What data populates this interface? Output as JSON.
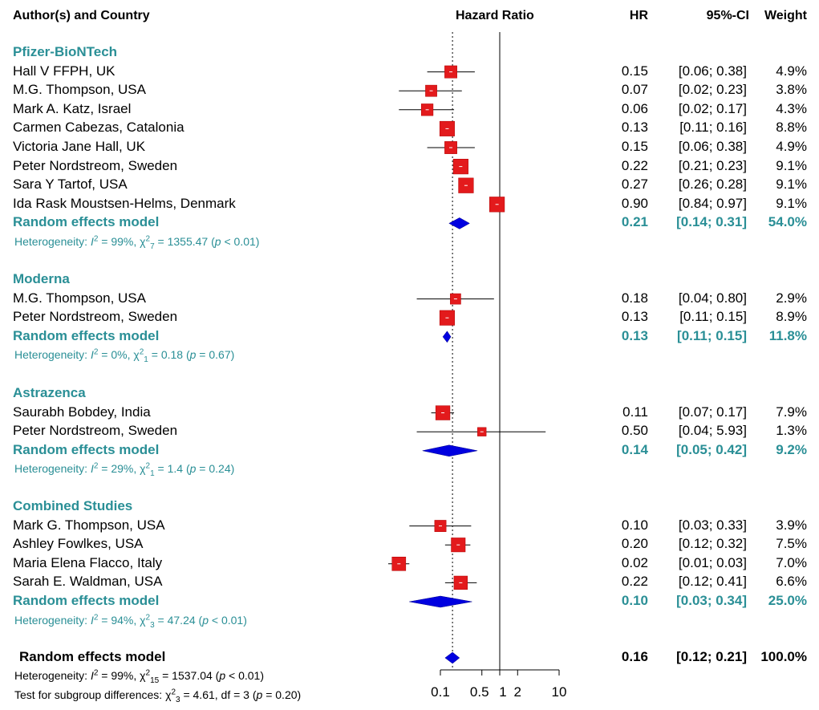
{
  "headers": {
    "author": "Author(s) and Country",
    "hazard_ratio": "Hazard Ratio",
    "hr": "HR",
    "ci": "95%-CI",
    "weight": "Weight"
  },
  "colors": {
    "square": "#e31a1c",
    "diamond": "#0000e0",
    "teal": "#2a8f96"
  },
  "chart_data": {
    "type": "forest",
    "title": "Hazard Ratio",
    "x_scale": "log",
    "xlim": [
      0.02,
      10
    ],
    "reference_lines": [
      {
        "value": 1,
        "style": "solid"
      },
      {
        "value": 0.16,
        "style": "dotted"
      }
    ],
    "tick_labels": [
      "0.1",
      "0.5",
      "1",
      "2",
      "10"
    ],
    "tick_values": [
      0.1,
      0.5,
      1,
      2,
      10
    ],
    "groups": [
      {
        "name": "Pfizer-BioNTech",
        "studies": [
          {
            "label": "Hall V FFPH,  UK",
            "hr": 0.15,
            "lo": 0.06,
            "hi": 0.38,
            "hr_text": "0.15",
            "ci_text": "[0.06;  0.38]",
            "weight_text": "4.9%",
            "weight": 4.9
          },
          {
            "label": "M.G. Thompson,  USA",
            "hr": 0.07,
            "lo": 0.02,
            "hi": 0.23,
            "hr_text": "0.07",
            "ci_text": "[0.02;  0.23]",
            "weight_text": "3.8%",
            "weight": 3.8
          },
          {
            "label": "Mark A. Katz,  Israel",
            "hr": 0.06,
            "lo": 0.02,
            "hi": 0.17,
            "hr_text": "0.06",
            "ci_text": "[0.02;  0.17]",
            "weight_text": "4.3%",
            "weight": 4.3
          },
          {
            "label": "Carmen Cabezas,  Catalonia",
            "hr": 0.13,
            "lo": 0.11,
            "hi": 0.16,
            "hr_text": "0.13",
            "ci_text": "[0.11;  0.16]",
            "weight_text": "8.8%",
            "weight": 8.8
          },
          {
            "label": "Victoria Jane Hall,  UK",
            "hr": 0.15,
            "lo": 0.06,
            "hi": 0.38,
            "hr_text": "0.15",
            "ci_text": "[0.06;  0.38]",
            "weight_text": "4.9%",
            "weight": 4.9
          },
          {
            "label": "Peter Nordstreom,  Sweden",
            "hr": 0.22,
            "lo": 0.21,
            "hi": 0.23,
            "hr_text": "0.22",
            "ci_text": "[0.21;  0.23]",
            "weight_text": "9.1%",
            "weight": 9.1
          },
          {
            "label": "Sara Y Tartof,  USA",
            "hr": 0.27,
            "lo": 0.26,
            "hi": 0.28,
            "hr_text": "0.27",
            "ci_text": "[0.26;  0.28]",
            "weight_text": "9.1%",
            "weight": 9.1
          },
          {
            "label": "Ida Rask Moustsen-Helms,  Denmark",
            "hr": 0.9,
            "lo": 0.84,
            "hi": 0.97,
            "hr_text": "0.90",
            "ci_text": "[0.84;  0.97]",
            "weight_text": "9.1%",
            "weight": 9.1
          }
        ],
        "model": {
          "label": "Random effects model",
          "hr": 0.21,
          "lo": 0.14,
          "hi": 0.31,
          "hr_text": "0.21",
          "ci_text": "[0.14;  0.31]",
          "weight_text": "54.0%"
        },
        "heterogeneity": {
          "prefix": "Heterogeneity: ",
          "i2_value": " = 99%, ",
          "chi_df": "7",
          "chi_value": " = 1355.47 (",
          "p_text": " < 0.01)"
        }
      },
      {
        "name": "Moderna",
        "studies": [
          {
            "label": "M.G. Thompson,  USA",
            "hr": 0.18,
            "lo": 0.04,
            "hi": 0.8,
            "hr_text": "0.18",
            "ci_text": "[0.04;  0.80]",
            "weight_text": "2.9%",
            "weight": 2.9
          },
          {
            "label": "Peter Nordstreom,  Sweden",
            "hr": 0.13,
            "lo": 0.11,
            "hi": 0.15,
            "hr_text": "0.13",
            "ci_text": "[0.11;  0.15]",
            "weight_text": "8.9%",
            "weight": 8.9
          }
        ],
        "model": {
          "label": "Random effects model",
          "hr": 0.13,
          "lo": 0.11,
          "hi": 0.15,
          "hr_text": "0.13",
          "ci_text": "[0.11;  0.15]",
          "weight_text": "11.8%"
        },
        "heterogeneity": {
          "prefix": "Heterogeneity: ",
          "i2_value": " = 0%, ",
          "chi_df": "1",
          "chi_value": " = 0.18 (",
          "p_text": " = 0.67)"
        }
      },
      {
        "name": "Astrazenca",
        "studies": [
          {
            "label": "Saurabh Bobdey,  India",
            "hr": 0.11,
            "lo": 0.07,
            "hi": 0.17,
            "hr_text": "0.11",
            "ci_text": "[0.07;  0.17]",
            "weight_text": "7.9%",
            "weight": 7.9
          },
          {
            "label": "Peter Nordstreom,  Sweden",
            "hr": 0.5,
            "lo": 0.04,
            "hi": 5.93,
            "hr_text": "0.50",
            "ci_text": "[0.04;  5.93]",
            "weight_text": "1.3%",
            "weight": 1.3
          }
        ],
        "model": {
          "label": "Random effects model",
          "hr": 0.14,
          "lo": 0.05,
          "hi": 0.42,
          "hr_text": "0.14",
          "ci_text": "[0.05;  0.42]",
          "weight_text": "9.2%"
        },
        "heterogeneity": {
          "prefix": "Heterogeneity: ",
          "i2_value": " = 29%, ",
          "chi_df": "1",
          "chi_value": " = 1.4 (",
          "p_text": " = 0.24)"
        }
      },
      {
        "name": "Combined Studies",
        "studies": [
          {
            "label": "Mark G. Thompson,  USA",
            "hr": 0.1,
            "lo": 0.03,
            "hi": 0.33,
            "hr_text": "0.10",
            "ci_text": "[0.03;  0.33]",
            "weight_text": "3.9%",
            "weight": 3.9
          },
          {
            "label": "Ashley Fowlkes,  USA",
            "hr": 0.2,
            "lo": 0.12,
            "hi": 0.32,
            "hr_text": "0.20",
            "ci_text": "[0.12;  0.32]",
            "weight_text": "7.5%",
            "weight": 7.5
          },
          {
            "label": "Maria Elena Flacco,  Italy",
            "hr": 0.02,
            "lo": 0.01,
            "hi": 0.03,
            "hr_text": "0.02",
            "ci_text": "[0.01;  0.03]",
            "weight_text": "7.0%",
            "weight": 7.0
          },
          {
            "label": "Sarah E. Waldman,  USA",
            "hr": 0.22,
            "lo": 0.12,
            "hi": 0.41,
            "hr_text": "0.22",
            "ci_text": "[0.12;  0.41]",
            "weight_text": "6.6%",
            "weight": 6.6
          }
        ],
        "model": {
          "label": "Random effects model",
          "hr": 0.1,
          "lo": 0.03,
          "hi": 0.34,
          "hr_text": "0.10",
          "ci_text": "[0.03;  0.34]",
          "weight_text": "25.0%"
        },
        "heterogeneity": {
          "prefix": "Heterogeneity: ",
          "i2_value": " = 94%, ",
          "chi_df": "3",
          "chi_value": " = 47.24 (",
          "p_text": " < 0.01)"
        }
      }
    ],
    "overall": {
      "label": "Random effects model",
      "hr": 0.16,
      "lo": 0.12,
      "hi": 0.21,
      "hr_text": "0.16",
      "ci_text": "[0.12;  0.21]",
      "weight_text": "100.0%",
      "heterogeneity": {
        "prefix": "Heterogeneity: ",
        "i2_value": " = 99%, ",
        "chi_df": "15",
        "chi_value": " = 1537.04 (",
        "p_text": " < 0.01)"
      },
      "subgroup_test": {
        "prefix": "Test for subgroup differences: ",
        "chi_df": "3",
        "chi_value": " = 4.61, df = 3 (",
        "p_text": " = 0.20)"
      }
    }
  }
}
